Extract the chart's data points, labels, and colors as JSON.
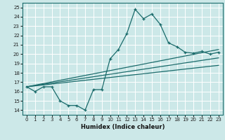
{
  "title": "",
  "xlabel": "Humidex (Indice chaleur)",
  "bg_color": "#cce8e8",
  "grid_color": "#b0d8d8",
  "line_color": "#1a6b6b",
  "xlim": [
    -0.5,
    23.5
  ],
  "ylim": [
    13.5,
    25.5
  ],
  "xticks": [
    0,
    1,
    2,
    3,
    4,
    5,
    6,
    7,
    8,
    9,
    10,
    11,
    12,
    13,
    14,
    15,
    16,
    17,
    18,
    19,
    20,
    21,
    22,
    23
  ],
  "yticks": [
    14,
    15,
    16,
    17,
    18,
    19,
    20,
    21,
    22,
    23,
    24,
    25
  ],
  "series": [
    [
      0,
      16.5
    ],
    [
      1,
      16.0
    ],
    [
      2,
      16.5
    ],
    [
      3,
      16.5
    ],
    [
      4,
      15.0
    ],
    [
      5,
      14.5
    ],
    [
      6,
      14.5
    ],
    [
      7,
      14.0
    ],
    [
      8,
      16.2
    ],
    [
      9,
      16.2
    ],
    [
      10,
      19.5
    ],
    [
      11,
      20.5
    ],
    [
      12,
      22.2
    ],
    [
      13,
      24.8
    ],
    [
      14,
      23.8
    ],
    [
      15,
      24.3
    ],
    [
      16,
      23.2
    ],
    [
      17,
      21.2
    ],
    [
      18,
      20.8
    ],
    [
      19,
      20.2
    ],
    [
      20,
      20.1
    ],
    [
      21,
      20.3
    ],
    [
      22,
      20.0
    ],
    [
      23,
      20.2
    ]
  ],
  "diagonal_lines": [
    {
      "x0": 0,
      "y0": 16.5,
      "x1": 23,
      "y1": 20.5
    },
    {
      "x0": 0,
      "y0": 16.5,
      "x1": 23,
      "y1": 19.6
    },
    {
      "x0": 0,
      "y0": 16.5,
      "x1": 23,
      "y1": 18.8
    }
  ]
}
